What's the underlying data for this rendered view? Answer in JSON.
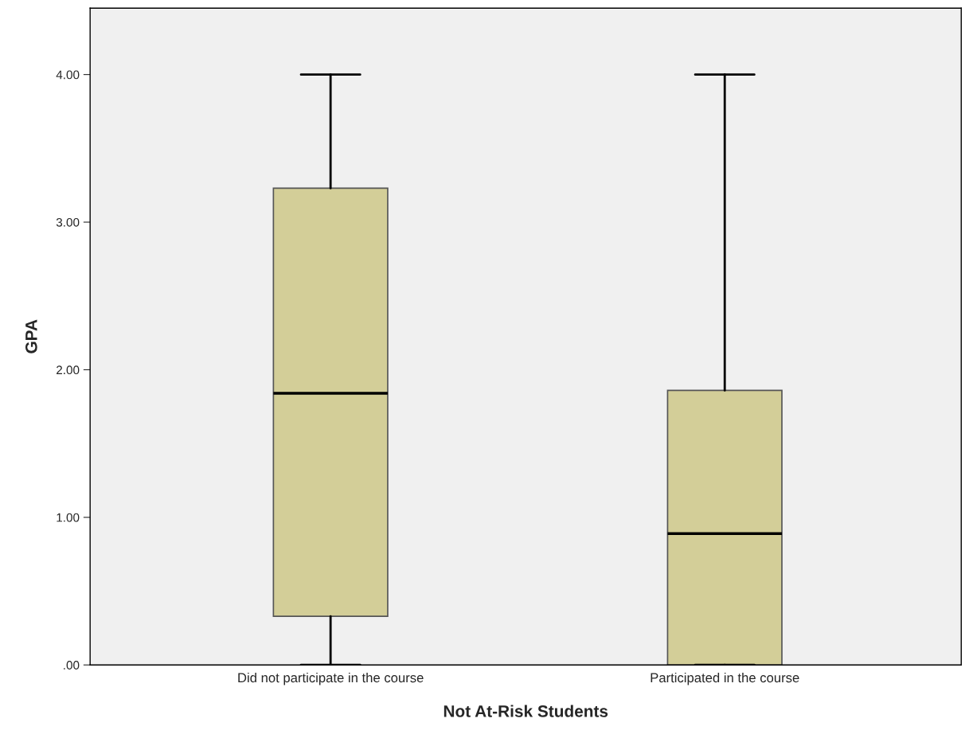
{
  "chart_data": {
    "type": "box",
    "xlabel": "Not At-Risk Students",
    "ylabel": "GPA",
    "categories": [
      "Did not participate in the course",
      "Participated in the course"
    ],
    "boxes": [
      {
        "low": 0,
        "q1": 0.33,
        "median": 1.84,
        "q3": 3.23,
        "high": 4.0
      },
      {
        "low": 0,
        "q1": 0,
        "median": 0.89,
        "q3": 1.86,
        "high": 4.0
      }
    ],
    "color": "#d3ce98",
    "ylim": [
      0,
      4.45
    ],
    "yticks": [
      {
        "value": 0,
        "label": ".00"
      },
      {
        "value": 1,
        "label": "1.00"
      },
      {
        "value": 2,
        "label": "2.00"
      },
      {
        "value": 3,
        "label": "3.00"
      },
      {
        "value": 4,
        "label": "4.00"
      }
    ],
    "grid": false
  }
}
